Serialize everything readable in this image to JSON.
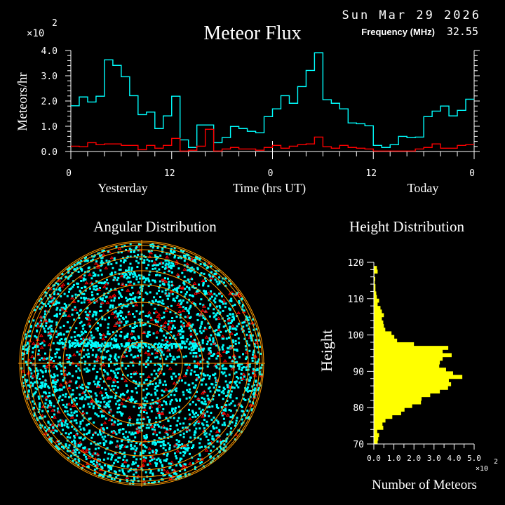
{
  "header": {
    "date": "Sun Mar 29 2026",
    "frequency_label": "Frequency (MHz)",
    "frequency_value": "32.55"
  },
  "colors": {
    "background": "#000000",
    "axis": "#ffffff",
    "all_meteors": "#00ffff",
    "filtered_meteors": "#ff0000",
    "polar_grid": "#ff9900",
    "height_bars": "#ffff00"
  },
  "chart_data": [
    {
      "type": "line",
      "style": "step",
      "title": "Meteor Flux",
      "xlabel": "Time (hrs UT)",
      "ylabel": "Meteors/hr",
      "y_multiplier": "×10",
      "y_multiplier_exp": "2",
      "xlim": [
        0,
        48
      ],
      "ylim": [
        0,
        4.0
      ],
      "x_tick_labels": [
        "0",
        "12",
        "0",
        "12",
        "0"
      ],
      "x_tick_values": [
        0,
        12,
        24,
        36,
        48
      ],
      "y_tick_labels": [
        "0.0",
        "1.0",
        "2.0",
        "3.0",
        "4.0"
      ],
      "y_tick_values": [
        0,
        1,
        2,
        3,
        4
      ],
      "day_labels": [
        "Yesterday",
        "Today"
      ],
      "grid": false,
      "series": [
        {
          "color": "#00ffff",
          "values": [
            1.81,
            2.16,
            1.96,
            2.19,
            3.63,
            3.41,
            2.96,
            2.21,
            1.46,
            1.56,
            0.91,
            1.41,
            2.19,
            0.46,
            0.16,
            1.05,
            1.05,
            0.35,
            0.55,
            0.99,
            0.91,
            0.8,
            0.74,
            1.38,
            1.69,
            2.21,
            1.91,
            2.57,
            3.21,
            3.91,
            2.05,
            1.91,
            1.69,
            1.13,
            1.1,
            1.02,
            0.24,
            0.16,
            0.27,
            0.6,
            0.55,
            0.57,
            1.38,
            1.6,
            1.8,
            1.41,
            1.63,
            2.07
          ]
        },
        {
          "color": "#ff0000",
          "values": [
            0.21,
            0.19,
            0.35,
            0.27,
            0.3,
            0.3,
            0.24,
            0.24,
            0.07,
            0.24,
            0.13,
            0.24,
            0.52,
            0.02,
            0.05,
            0.21,
            0.88,
            0.02,
            0.1,
            0.16,
            0.1,
            0.1,
            0.05,
            0.16,
            0.24,
            0.13,
            0.21,
            0.27,
            0.3,
            0.57,
            0.19,
            0.13,
            0.24,
            0.16,
            0.13,
            0.1,
            0.02,
            0.02,
            0.02,
            0.02,
            0.02,
            0.1,
            0.16,
            0.3,
            0.13,
            0.13,
            0.24,
            0.27
          ]
        }
      ]
    },
    {
      "type": "scatter",
      "projection": "polar",
      "title": "Angular Distribution",
      "grid": true,
      "series": [
        {
          "color": "#00ffff",
          "marker": "square"
        },
        {
          "color": "#ff0000",
          "marker": "triangle"
        }
      ]
    },
    {
      "type": "bar",
      "orientation": "horizontal",
      "title": "Height Distribution",
      "xlabel": "Number of Meteors",
      "ylabel": "Height",
      "x_multiplier": "×10",
      "x_multiplier_exp": "2",
      "xlim": [
        0,
        5.0
      ],
      "ylim": [
        70,
        120
      ],
      "x_tick_labels": [
        "0.0",
        "1.0",
        "2.0",
        "3.0",
        "4.0",
        "5.0"
      ],
      "y_tick_labels": [
        "70",
        "80",
        "90",
        "100",
        "110",
        "120"
      ],
      "bin_start": [
        70,
        71,
        72,
        73,
        74,
        75,
        76,
        77,
        78,
        79,
        80,
        81,
        82,
        83,
        84,
        85,
        86,
        87,
        88,
        89,
        90,
        91,
        92,
        93,
        94,
        95,
        96,
        97,
        98,
        99,
        100,
        101,
        102,
        103,
        104,
        105,
        106,
        107,
        108,
        109,
        110,
        111,
        112,
        113,
        114,
        115,
        116,
        117,
        118,
        119
      ],
      "values": [
        0.19,
        0.22,
        0.26,
        0.17,
        0.47,
        0.43,
        0.58,
        0.92,
        1.36,
        1.53,
        1.91,
        2.35,
        2.38,
        2.81,
        3.29,
        3.7,
        3.85,
        3.74,
        4.41,
        3.95,
        3.6,
        3.26,
        3.29,
        3.43,
        3.88,
        3.43,
        3.71,
        2.0,
        1.16,
        1.02,
        0.88,
        0.57,
        0.5,
        0.47,
        0.4,
        0.5,
        0.4,
        0.33,
        0.19,
        0.26,
        0.15,
        0.12,
        0.08,
        0.08,
        0.05,
        0.07,
        0.03,
        0.19,
        0.15,
        0.0
      ]
    }
  ]
}
